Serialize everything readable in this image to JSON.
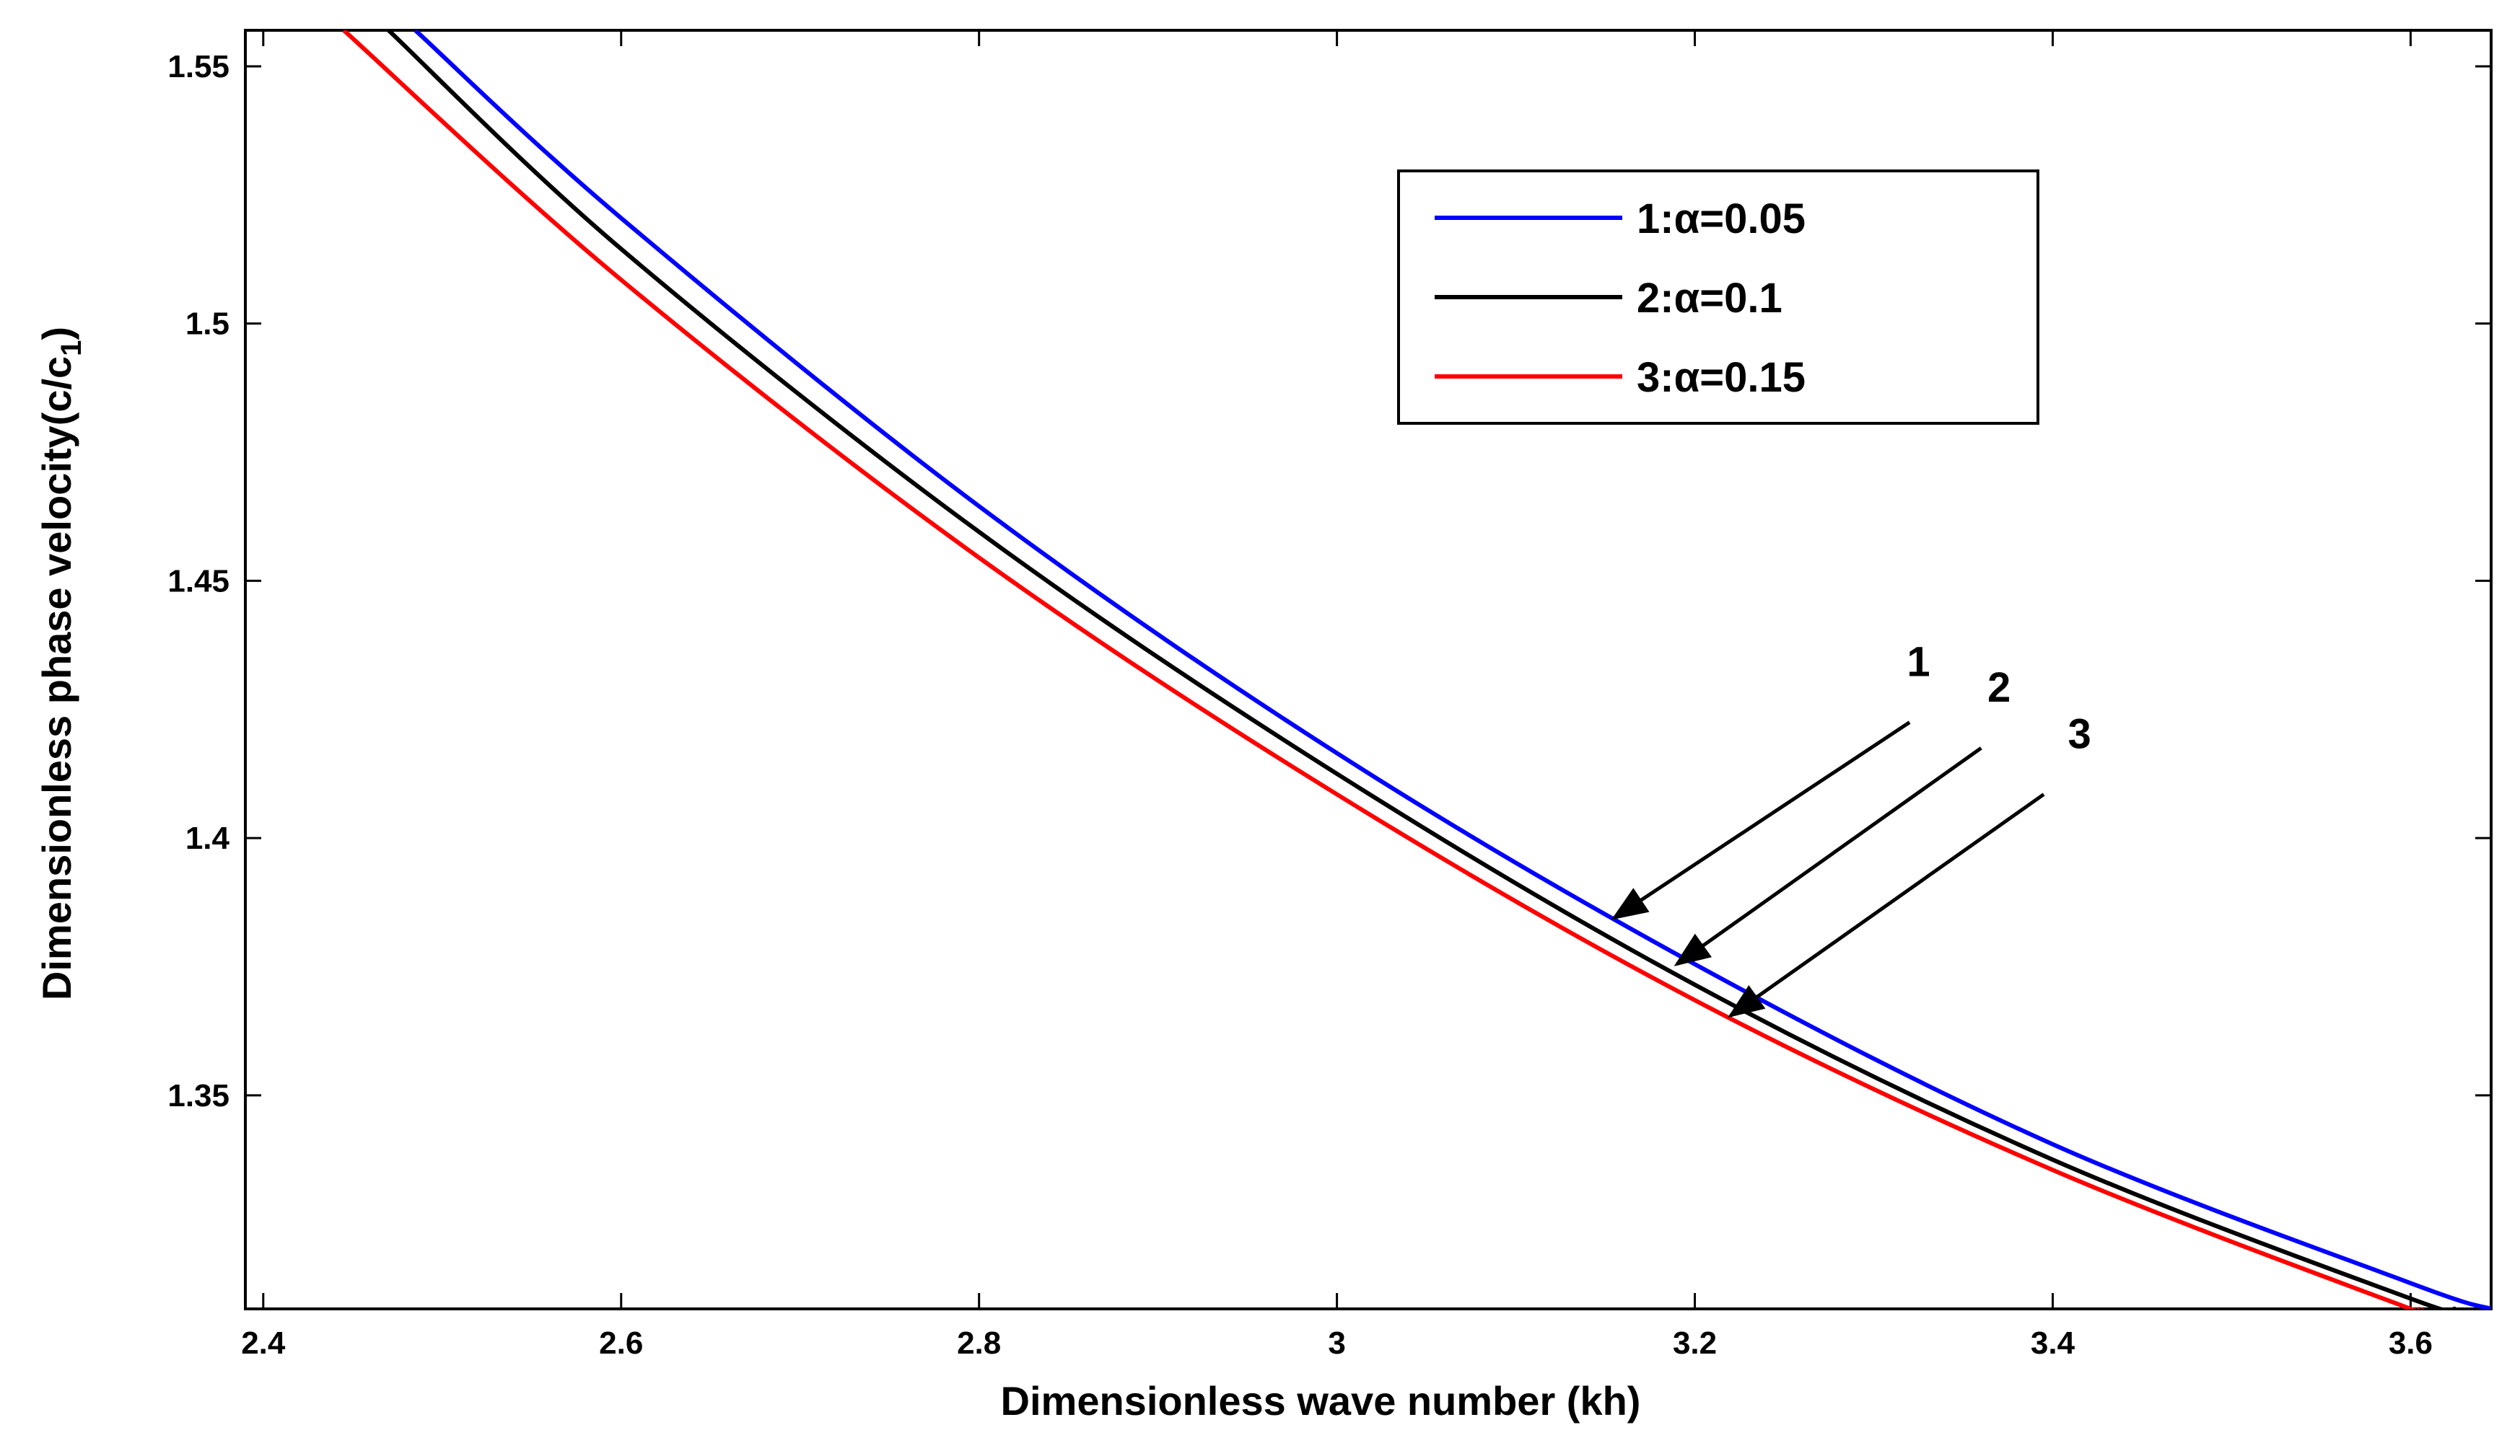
{
  "chart_data": {
    "type": "line",
    "title": "",
    "xlabel": "Dimensionless wave number (kh)",
    "ylabel_main": "Dimensionless phase velocity(c/c",
    "ylabel_sub": "1",
    "ylabel_close": ")",
    "xlim": [
      2.39,
      3.645
    ],
    "ylim": [
      1.3085,
      1.557
    ],
    "xticks": [
      2.4,
      2.6,
      2.8,
      3.0,
      3.2,
      3.4,
      3.6
    ],
    "xtick_labels": [
      "2.4",
      "2.6",
      "2.8",
      "3",
      "3.2",
      "3.4",
      "3.6"
    ],
    "yticks": [
      1.35,
      1.4,
      1.45,
      1.5,
      1.55
    ],
    "ytick_labels": [
      "1.35",
      "1.4",
      "1.45",
      "1.5",
      "1.55"
    ],
    "grid": false,
    "legend_position": "top-right",
    "series": [
      {
        "name": "1:α=0.05",
        "color": "#0000ff",
        "x": [
          2.485,
          2.6,
          2.8,
          3.0,
          3.2,
          3.4,
          3.6,
          3.645
        ],
        "y": [
          1.557,
          1.5205,
          1.4645,
          1.4165,
          1.3755,
          1.3405,
          1.3135,
          1.3085
        ]
      },
      {
        "name": "2:α=0.1",
        "color": "#000000",
        "x": [
          2.47,
          2.6,
          2.8,
          3.0,
          3.2,
          3.4,
          3.6,
          3.625
        ],
        "y": [
          1.557,
          1.5145,
          1.4595,
          1.4125,
          1.3715,
          1.3375,
          1.3105,
          1.3085
        ]
      },
      {
        "name": "3:α=0.15",
        "color": "#ff0000",
        "x": [
          2.445,
          2.6,
          2.8,
          3.0,
          3.2,
          3.4,
          3.6,
          3.605
        ],
        "y": [
          1.557,
          1.5085,
          1.4545,
          1.4085,
          1.3685,
          1.3355,
          1.3085,
          1.3085
        ]
      }
    ],
    "annotations": [
      {
        "text": "1",
        "label_x": 3.325,
        "label_y": 1.4315,
        "tail_x": 3.32,
        "tail_y": 1.4225,
        "head_x": 3.155,
        "head_y": 1.3845
      },
      {
        "text": "2",
        "label_x": 3.37,
        "label_y": 1.4265,
        "tail_x": 3.36,
        "tail_y": 1.4175,
        "head_x": 3.19,
        "head_y": 1.3755
      },
      {
        "text": "3",
        "label_x": 3.415,
        "label_y": 1.4175,
        "tail_x": 3.395,
        "tail_y": 1.4085,
        "head_x": 3.22,
        "head_y": 1.3655
      }
    ]
  }
}
